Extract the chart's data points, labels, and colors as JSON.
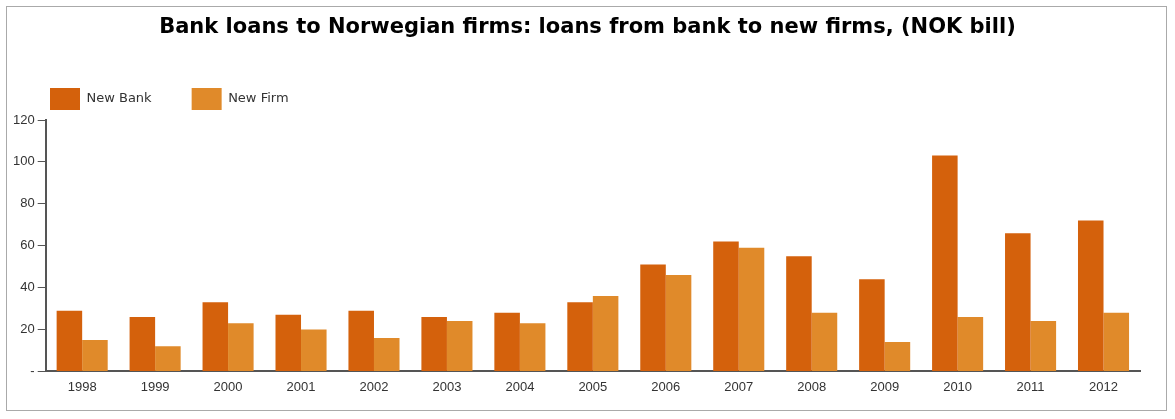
{
  "chart_data": {
    "type": "bar",
    "title": "Bank loans to Norwegian firms: loans from bank  to new firms, (NOK bill)",
    "categories": [
      "1998",
      "1999",
      "2000",
      "2001",
      "2002",
      "2003",
      "2004",
      "2005",
      "2006",
      "2007",
      "2008",
      "2009",
      "2010",
      "2011",
      "2012"
    ],
    "series": [
      {
        "name": "New Bank",
        "color": "#d4610c",
        "values": [
          29,
          26,
          33,
          27,
          29,
          26,
          28,
          33,
          51,
          62,
          55,
          44,
          103,
          66,
          72
        ]
      },
      {
        "name": "New Firm",
        "color": "#e08a2a",
        "values": [
          15,
          12,
          23,
          20,
          16,
          24,
          23,
          36,
          46,
          59,
          28,
          14,
          26,
          24,
          28
        ]
      }
    ],
    "ylim": [
      0,
      120
    ],
    "yticks": [
      {
        "value": 0,
        "label": "-"
      },
      20,
      40,
      60,
      80,
      100,
      120
    ],
    "grid": false,
    "legend": "top left"
  }
}
